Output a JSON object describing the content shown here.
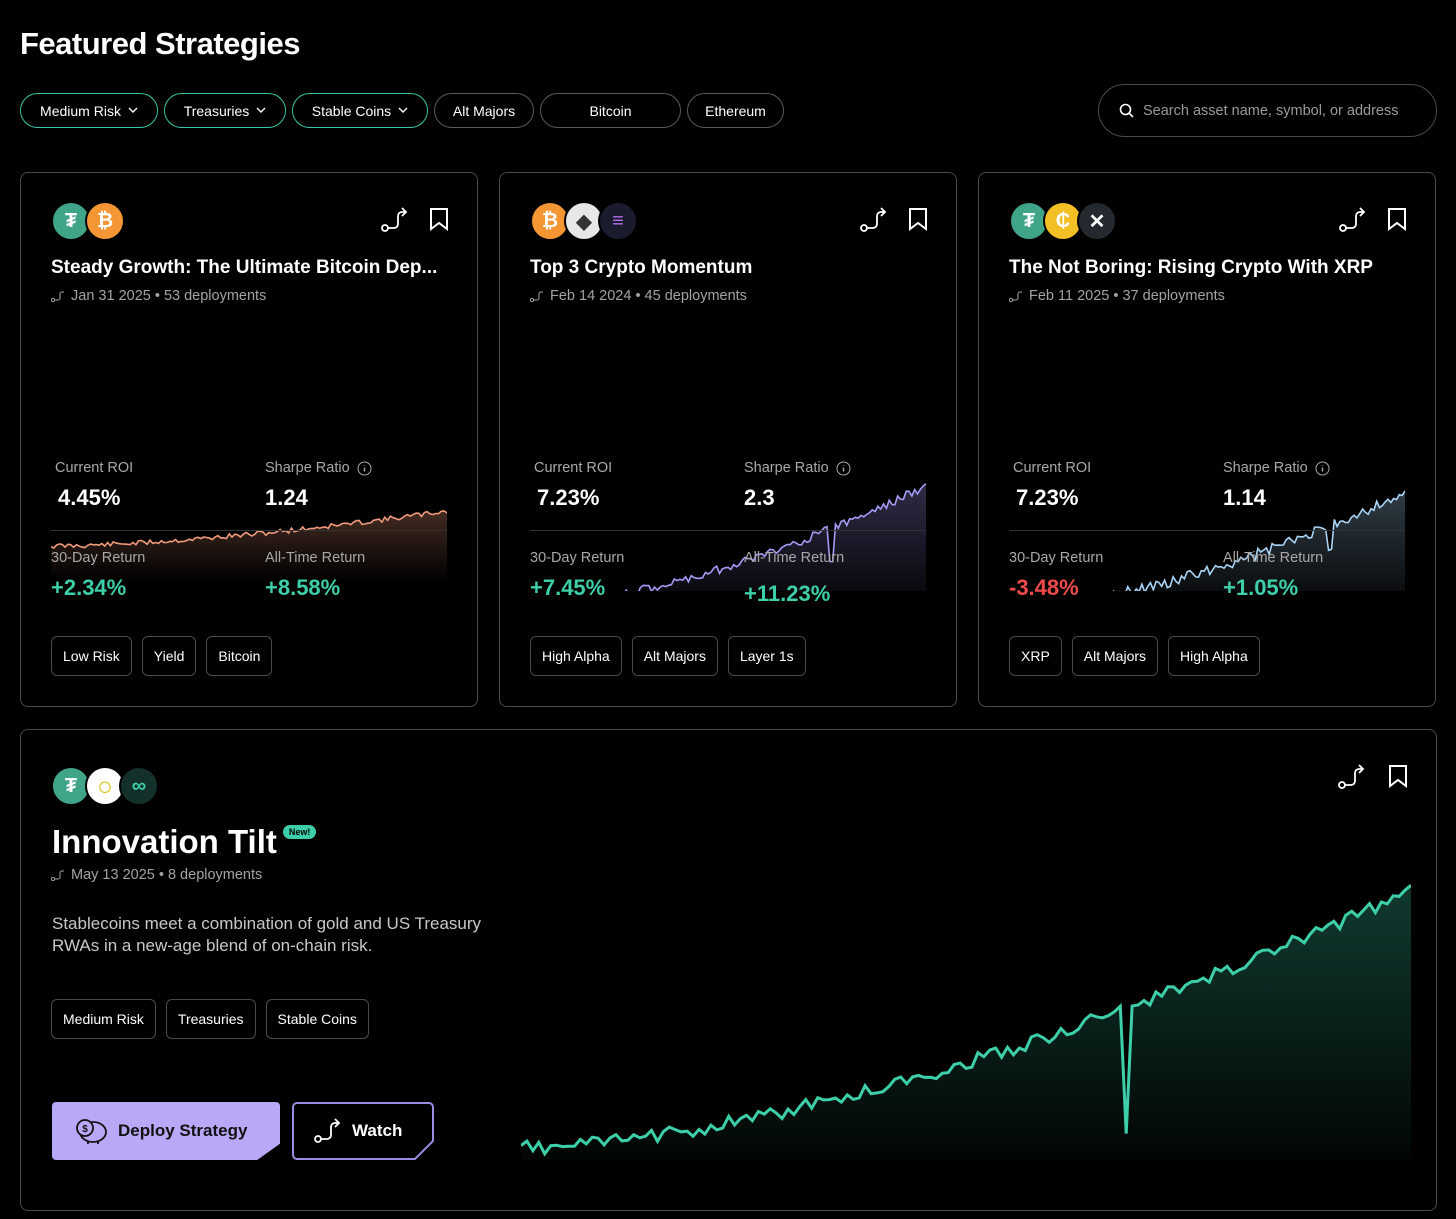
{
  "page": {
    "title": "Featured Strategies"
  },
  "filters": [
    {
      "label": "Medium Risk",
      "active": true,
      "dropdown": true
    },
    {
      "label": "Treasuries",
      "active": true,
      "dropdown": true
    },
    {
      "label": "Stable Coins",
      "active": true,
      "dropdown": true
    },
    {
      "label": "Alt Majors",
      "active": false,
      "dropdown": false
    },
    {
      "label": "Bitcoin",
      "active": false,
      "dropdown": false
    },
    {
      "label": "Ethereum",
      "active": false,
      "dropdown": false
    }
  ],
  "search": {
    "placeholder": "Search asset name, symbol, or address"
  },
  "colors": {
    "accent": "#3ccfa9",
    "negative": "#ef4b4b",
    "deploy": "#b9a7f7",
    "card1_line": "#f19a7b",
    "card2_line": "#a49cf7",
    "card3_line": "#a8d4f5",
    "big_line": "#3ccfa9"
  },
  "cards": [
    {
      "coins": [
        "tether-icon",
        "bitcoin-icon"
      ],
      "title": "Steady Growth: The Ultimate Bitcoin Dep...",
      "meta": "Jan 31 2025 • 53 deployments",
      "roi_label": "Current ROI",
      "roi": "4.45%",
      "sharpe_label": "Sharpe Ratio",
      "sharpe": "1.24",
      "return30_label": "30-Day Return",
      "return30": "+2.34%",
      "alltime_label": "All-Time Return",
      "alltime": "+8.58%",
      "tags": [
        "Low Risk",
        "Yield",
        "Bitcoin"
      ]
    },
    {
      "coins": [
        "bitcoin-icon",
        "ethereum-icon",
        "solana-icon"
      ],
      "title": "Top 3 Crypto Momentum",
      "meta": "Feb 14 2024 • 45 deployments",
      "roi_label": "Current ROI",
      "roi": "7.23%",
      "sharpe_label": "Sharpe Ratio",
      "sharpe": "2.3",
      "return30_label": "30-Day Return",
      "return30": "+7.45%",
      "alltime_label": "All-Time Return",
      "alltime": "+11.23%",
      "tags": [
        "High Alpha",
        "Alt Majors",
        "Layer 1s"
      ]
    },
    {
      "coins": [
        "tether-icon",
        "cash-coin-icon",
        "xrp-icon"
      ],
      "title": "The Not Boring: Rising Crypto With XRP",
      "meta": "Feb 11 2025 • 37 deployments",
      "roi_label": "Current ROI",
      "roi": "7.23%",
      "sharpe_label": "Sharpe Ratio",
      "sharpe": "1.14",
      "return30_label": "30-Day Return",
      "return30": "-3.48%",
      "alltime_label": "All-Time Return",
      "alltime": "+1.05%",
      "tags": [
        "XRP",
        "Alt Majors",
        "High Alpha"
      ]
    }
  ],
  "featured": {
    "coins": [
      "tether-icon",
      "gold-coin-icon",
      "link-coin-icon"
    ],
    "title": "Innovation Tilt",
    "badge": "New!",
    "meta": "May 13 2025 • 8 deployments",
    "description": "Stablecoins meet a combination of gold and US Treasury RWAs in a new-age blend of on-chain risk.",
    "tags": [
      "Medium Risk",
      "Treasuries",
      "Stable Coins"
    ],
    "deploy_label": "Deploy Strategy",
    "watch_label": "Watch"
  }
}
